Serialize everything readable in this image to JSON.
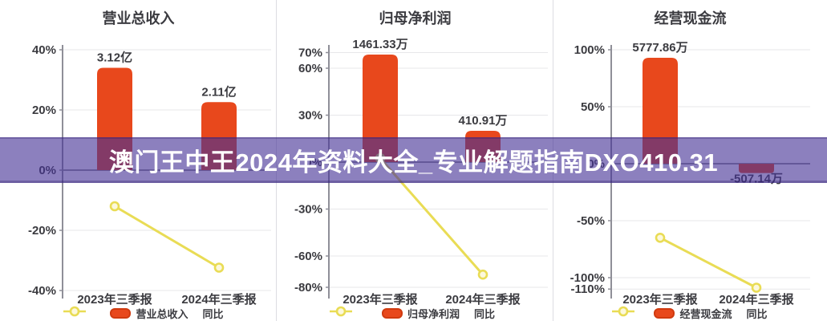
{
  "banner": {
    "text": "澳门王中王2024年资料大全_专业解题指南DXO410.31"
  },
  "colors": {
    "bar": "#e8481c",
    "bar_edge": "#d03b10",
    "line": "#e9dc55",
    "marker_fill": "#fcf8dc",
    "grid": "#e7e7ea",
    "zero_line": "#74747e",
    "axis": "#8f8f98",
    "text": "#3b3b40",
    "divider": "#dcdce2",
    "banner_bg": "rgba(70,50,150,0.62)",
    "banner_text": "#ffffff"
  },
  "chart_data": [
    {
      "type": "bar+line",
      "title": "营业总收入",
      "categories": [
        "2023年三季报",
        "2024年三季报"
      ],
      "bar_series": {
        "name": "营业总收入",
        "value_labels": [
          "3.12亿",
          "2.11亿"
        ],
        "plotted_pct": [
          34,
          22.6
        ]
      },
      "line_series": {
        "name": "同比",
        "pct": [
          -12,
          -32.4
        ]
      },
      "yticks_pct": [
        40,
        20,
        0,
        -20,
        -40
      ],
      "ylim": [
        45,
        -44
      ],
      "legend": [
        "营业总收入",
        "同比"
      ],
      "legend_position": "bottom",
      "grid": "on"
    },
    {
      "type": "bar+line",
      "title": "归母净利润",
      "categories": [
        "2023年三季报",
        "2024年三季报"
      ],
      "bar_series": {
        "name": "归母净利润",
        "value_labels": [
          "1461.33万",
          "410.91万"
        ],
        "plotted_pct": [
          68.7,
          20
        ]
      },
      "line_series": {
        "name": "同比",
        "pct": [
          2.5,
          -71.9
        ]
      },
      "yticks_pct": [
        70,
        60,
        30,
        0,
        -30,
        -60,
        -80
      ],
      "ylim": [
        75,
        -86
      ],
      "legend": [
        "归母净利润",
        "同比"
      ],
      "legend_position": "bottom",
      "grid": "on"
    },
    {
      "type": "bar+line",
      "title": "经营现金流",
      "categories": [
        "2023年三季报",
        "2024年三季报"
      ],
      "bar_series": {
        "name": "经营现金流",
        "value_labels": [
          "5777.86万",
          "-507.14万"
        ],
        "plotted_pct": [
          93,
          -8.2
        ]
      },
      "line_series": {
        "name": "同比",
        "pct": [
          -65,
          -108.8
        ]
      },
      "yticks_pct": [
        100,
        50,
        0,
        -50,
        -100,
        -110
      ],
      "ylim": [
        104,
        -117
      ],
      "legend": [
        "经营现金流",
        "同比"
      ],
      "legend_position": "bottom",
      "grid": "on"
    }
  ]
}
